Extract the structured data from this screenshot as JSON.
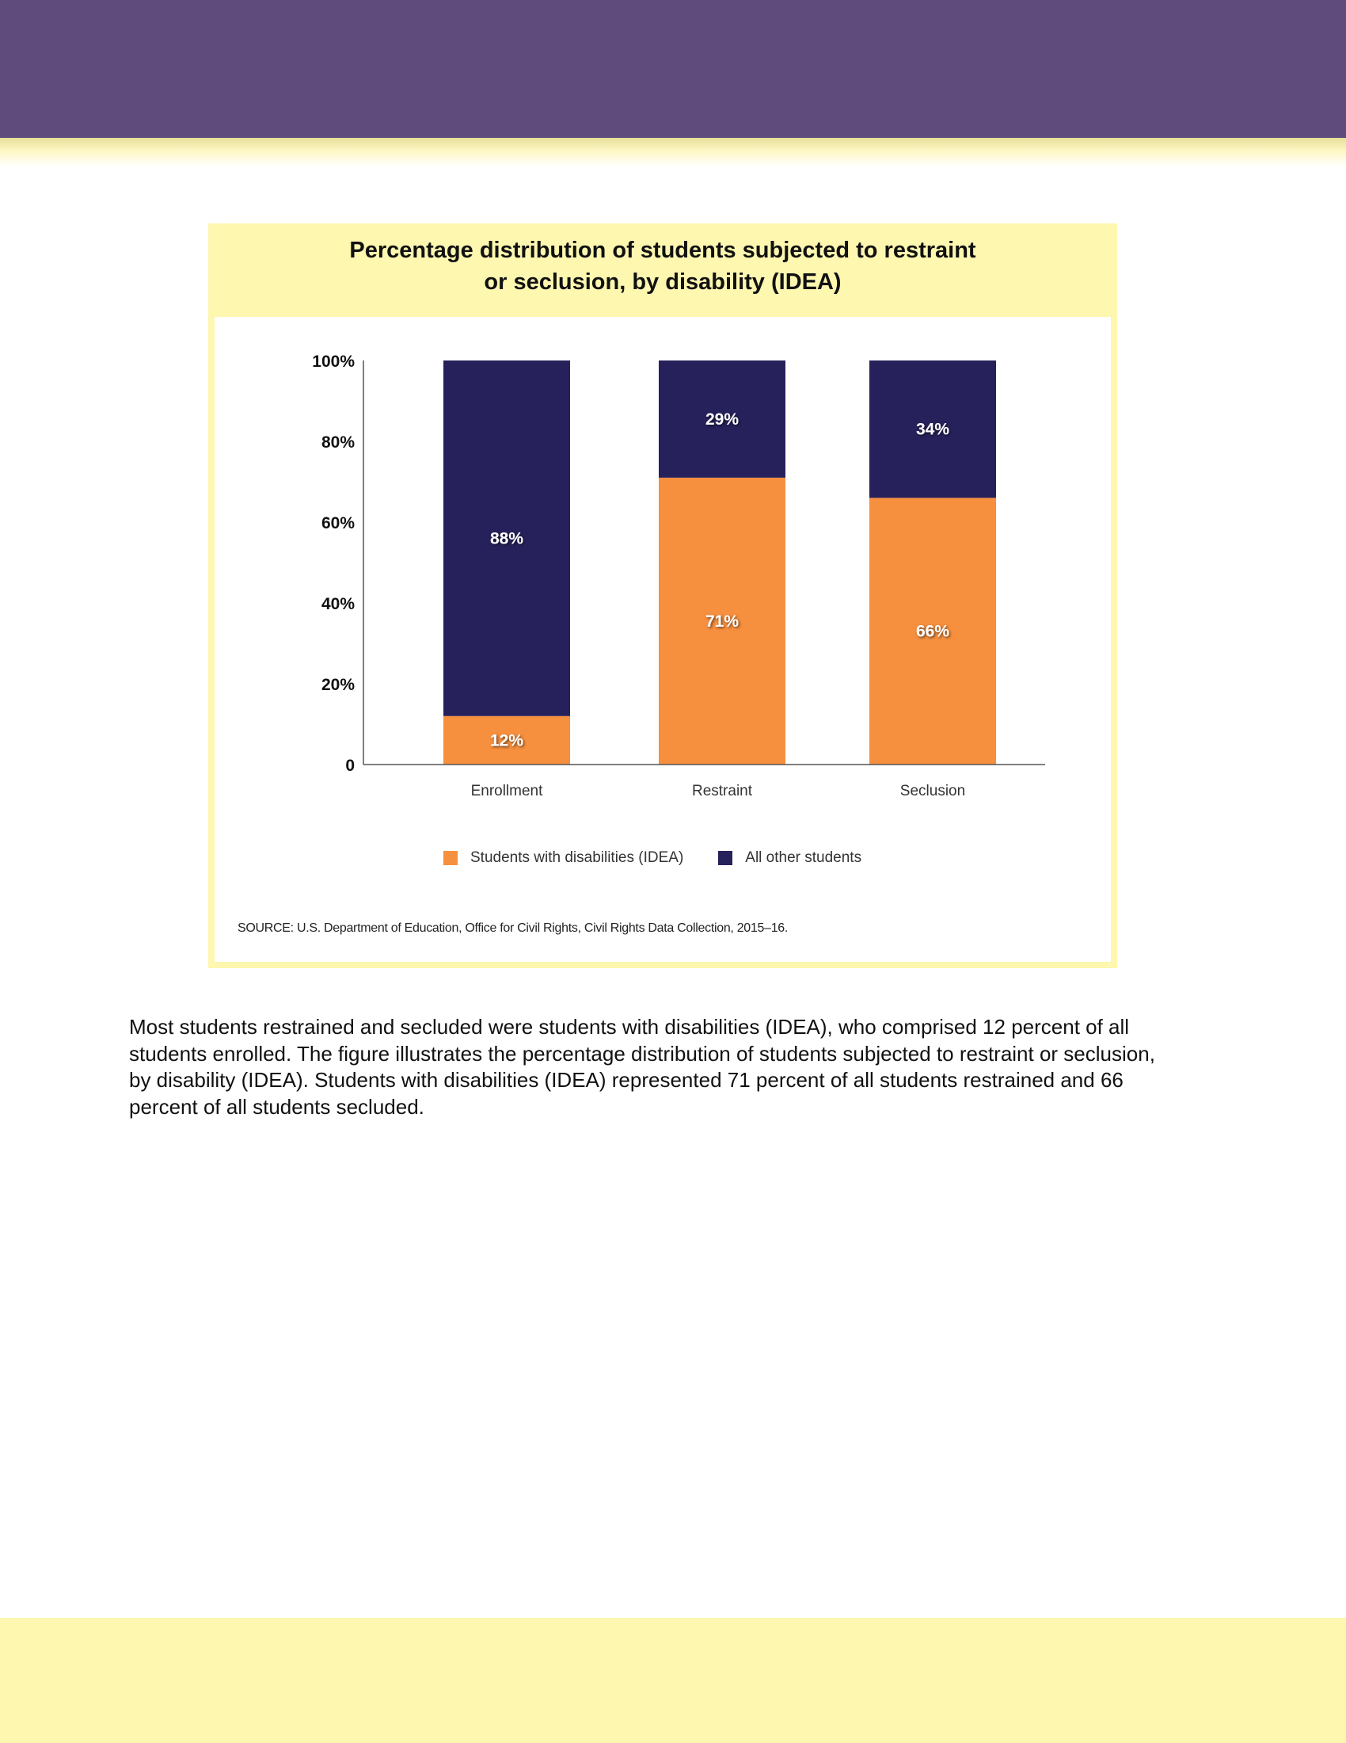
{
  "header": {},
  "figure": {
    "title_line1": "Percentage distribution of students subjected to restraint",
    "title_line2": "or seclusion, by disability (IDEA)",
    "source": "SOURCE: U.S. Department of Education, Office for Civil Rights, Civil Rights Data Collection, 2015–16."
  },
  "chart_data": {
    "type": "bar",
    "stacked": true,
    "title": "Percentage distribution of students subjected to restraint or seclusion, by disability (IDEA)",
    "categories": [
      "Enrollment",
      "Restraint",
      "Seclusion"
    ],
    "series": [
      {
        "name": "Students with disabilities (IDEA)",
        "values": [
          12,
          71,
          66
        ],
        "labels": [
          "12%",
          "71%",
          "66%"
        ],
        "color": "#f68f3e"
      },
      {
        "name": "All other students",
        "values": [
          88,
          29,
          34
        ],
        "labels": [
          "88%",
          "29%",
          "34%"
        ],
        "color": "#27215b"
      }
    ],
    "yticks": [
      "0",
      "20%",
      "40%",
      "60%",
      "80%",
      "100%"
    ],
    "ylim": [
      0,
      100
    ],
    "xlabel": "",
    "ylabel": "",
    "legend_position": "bottom",
    "grid": false
  },
  "body": {
    "paragraph": "Most students restrained and secluded were students with disabilities (IDEA), who comprised 12 percent of all students enrolled. The figure illustrates the percentage distribution of students subjected to restraint or seclusion, by disability (IDEA). Students with disabilities (IDEA) represented 71 percent of all students restrained and 66 percent of all students secluded."
  },
  "colors": {
    "header_band": "#604c7c",
    "accent_yellow": "#fdf7b0",
    "idea": "#f68f3e",
    "other": "#27215b"
  }
}
